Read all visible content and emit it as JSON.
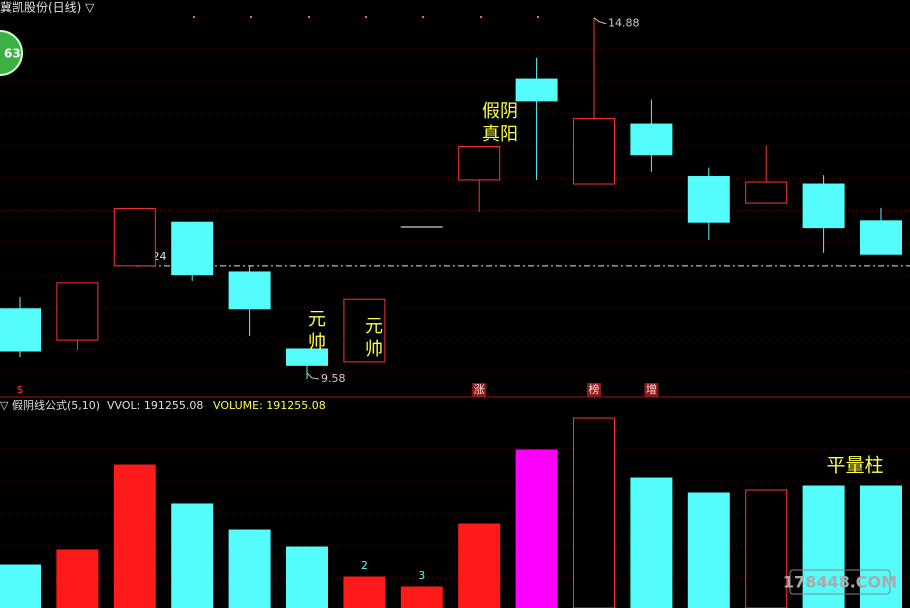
{
  "title": "冀凯股份(日线) ▽",
  "badge": "63",
  "watermark": "178448.COM",
  "chart_data": [
    {
      "type": "candlestick",
      "open": [
        10.61,
        10.15,
        11.24,
        11.88,
        11.15,
        10.02,
        9.83,
        11.81,
        12.5,
        13.98,
        12.44,
        13.32,
        12.55,
        12.16,
        12.44,
        11.9
      ],
      "high": [
        10.78,
        10.99,
        12.08,
        11.88,
        11.24,
        10.02,
        10.75,
        11.81,
        12.99,
        14.29,
        14.88,
        13.68,
        12.68,
        13.01,
        12.57,
        12.09
      ],
      "low": [
        9.9,
        10.0,
        11.24,
        11.02,
        10.21,
        9.58,
        9.83,
        11.81,
        12.03,
        12.5,
        12.44,
        12.62,
        11.62,
        12.16,
        11.43,
        11.41
      ],
      "close": [
        9.99,
        10.99,
        12.08,
        11.11,
        10.61,
        9.78,
        10.75,
        11.81,
        12.99,
        13.66,
        13.4,
        12.87,
        11.88,
        12.47,
        11.8,
        11.41
      ],
      "up_color": "#ff3232",
      "down_color": "#54fcfc",
      "flat_color": "#ffffff",
      "ylim": [
        9.33,
        15.14
      ],
      "ref_line": 11.24,
      "annotations": [
        {
          "candle": 5,
          "lines": [
            "元",
            "帅"
          ]
        },
        {
          "candle": 6,
          "lines": [
            "元",
            "帅"
          ]
        },
        {
          "candle": 8,
          "lines": [
            "假阴",
            "真阳"
          ]
        }
      ],
      "markers": [
        {
          "candle": 0,
          "text": "$"
        },
        {
          "candle": 8,
          "text": "涨"
        },
        {
          "candle": 10,
          "text": "榜"
        },
        {
          "candle": 11,
          "text": "增"
        }
      ]
    },
    {
      "type": "bar",
      "title": "▽ 假阴线公式(5,10)",
      "indicator_labels": [
        "VVOL: 191255.08",
        "VOLUME: 191255.08"
      ],
      "values": [
        65300,
        89300,
        224700,
        162600,
        121100,
        94000,
        46200,
        30300,
        130700,
        248600,
        299600,
        204000,
        180100,
        184900,
        191255.08,
        191255.08
      ],
      "colors": [
        "#54fcfc",
        "#ff1a1a",
        "#ff1a1a",
        "#54fcfc",
        "#54fcfc",
        "#54fcfc",
        "#ff1a1a",
        "#ff1a1a",
        "#ff1a1a",
        "#ff00ff",
        "#ff3232",
        "#54fcfc",
        "#54fcfc",
        "#ff3232",
        "#54fcfc",
        "#54fcfc"
      ],
      "hollow": [
        false,
        false,
        false,
        false,
        false,
        false,
        false,
        false,
        false,
        false,
        true,
        false,
        false,
        true,
        false,
        false
      ],
      "ylim": [
        0,
        331500
      ],
      "tags": [
        {
          "bar": 6,
          "value": 2
        },
        {
          "bar": 7,
          "value": 3
        }
      ],
      "annotation": "平量柱"
    }
  ]
}
